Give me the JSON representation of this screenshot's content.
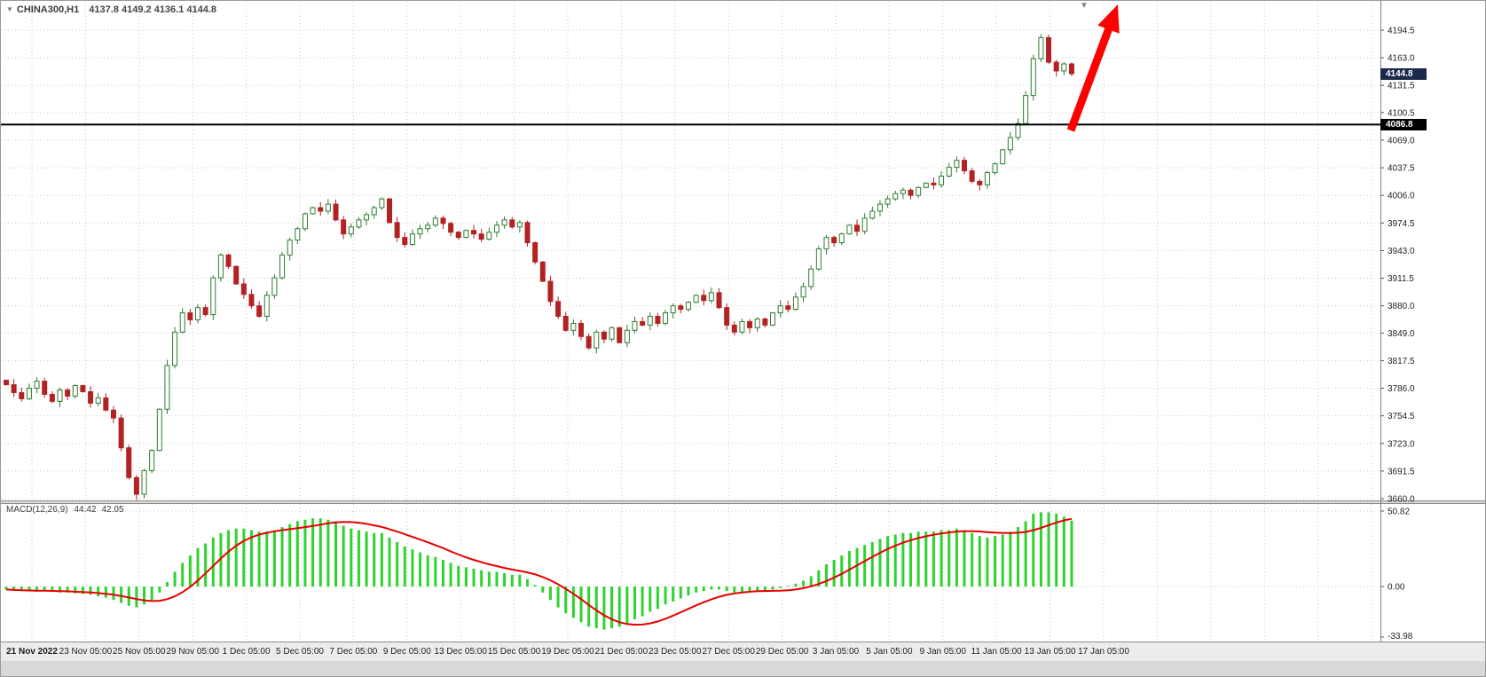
{
  "header": {
    "symbol": "CHINA300,H1",
    "ohlc_text": "4137.8 4149.2 4136.1 4144.8"
  },
  "macd": {
    "label": "MACD(12,26,9)",
    "value_main": "44.42",
    "value_signal": "42.05"
  },
  "price_axis": {
    "ticks": [
      4194.5,
      4163.0,
      4131.5,
      4100.5,
      4069.0,
      4037.5,
      4006.0,
      3974.5,
      3943.0,
      3911.5,
      3880.0,
      3849.0,
      3817.5,
      3786.0,
      3754.5,
      3723.0,
      3691.5,
      3660.0
    ],
    "current_price": 4144.8,
    "current_tag": "4144.8",
    "hline_price": 4086.8,
    "hline_tag": "4086.8"
  },
  "macd_axis": {
    "labels": [
      "50.82",
      "0.00",
      "-33.98"
    ],
    "values": [
      50.82,
      0.0,
      -33.98
    ]
  },
  "time_axis": {
    "labels": [
      "21 Nov 2022",
      "23 Nov 05:00",
      "25 Nov 05:00",
      "29 Nov 05:00",
      "1 Dec 05:00",
      "5 Dec 05:00",
      "7 Dec 05:00",
      "9 Dec 05:00",
      "13 Dec 05:00",
      "15 Dec 05:00",
      "19 Dec 05:00",
      "21 Dec 05:00",
      "23 Dec 05:00",
      "27 Dec 05:00",
      "29 Dec 05:00",
      "3 Jan 05:00",
      "5 Jan 05:00",
      "9 Jan 05:00",
      "11 Jan 05:00",
      "13 Jan 05:00",
      "17 Jan 05:00"
    ]
  },
  "annotations": {
    "hline_price": 4086.8,
    "hline_color": "#000000",
    "arrow_type": "up-trend-arrow",
    "arrow_color": "#ff0000"
  },
  "colors": {
    "bull_stroke": "#2e7d32",
    "bull_fill": "#ffffff",
    "bear": "#b22222",
    "macd_hist": "#2fd32f",
    "macd_signal": "#e60000",
    "grid": "#c9c9c9",
    "axis_line": "#808080",
    "tag_current_bg": "#1b2a4a",
    "tag_line_bg": "#000000",
    "bottom_strip": "#ececec"
  },
  "chart_data": [
    {
      "type": "candlestick",
      "title": "CHINA300,H1",
      "ylabel": "price",
      "ylim": [
        3660.0,
        4194.5
      ],
      "grid": true,
      "last_bar_ohlc": {
        "open": 4137.8,
        "high": 4149.2,
        "low": 4136.1,
        "close": 4144.8
      },
      "hline": 4086.8,
      "open_rule": "open equals previous close (values estimated from pixels)",
      "first_open": 3795,
      "closes": [
        3790,
        3781,
        3774,
        3786,
        3794,
        3779,
        3771,
        3784,
        3777,
        3789,
        3782,
        3769,
        3775,
        3761,
        3752,
        3718,
        3684,
        3665,
        3692,
        3715,
        3762,
        3812,
        3850,
        3872,
        3864,
        3878,
        3870,
        3912,
        3938,
        3925,
        3905,
        3893,
        3880,
        3868,
        3892,
        3912,
        3938,
        3955,
        3968,
        3985,
        3992,
        3988,
        3996,
        3978,
        3962,
        3970,
        3978,
        3984,
        3992,
        4002,
        3975,
        3958,
        3950,
        3962,
        3968,
        3972,
        3980,
        3974,
        3964,
        3958,
        3966,
        3962,
        3956,
        3964,
        3972,
        3978,
        3970,
        3975,
        3952,
        3930,
        3908,
        3885,
        3868,
        3852,
        3860,
        3845,
        3832,
        3850,
        3842,
        3855,
        3838,
        3852,
        3862,
        3858,
        3868,
        3860,
        3872,
        3880,
        3876,
        3884,
        3892,
        3886,
        3895,
        3878,
        3858,
        3850,
        3862,
        3855,
        3865,
        3858,
        3872,
        3880,
        3876,
        3890,
        3902,
        3922,
        3945,
        3958,
        3952,
        3962,
        3972,
        3965,
        3980,
        3988,
        3996,
        4002,
        4008,
        4012,
        4006,
        4015,
        4020,
        4018,
        4028,
        4038,
        4046,
        4034,
        4022,
        4018,
        4032,
        4042,
        4058,
        4072,
        4088,
        4120,
        4162,
        4186,
        4158,
        4148,
        4156,
        4144.8
      ]
    },
    {
      "type": "bar",
      "name": "MACD(12,26,9)",
      "ylim": [
        -33.98,
        50.82
      ],
      "last_macd": 44.42,
      "last_signal": 42.05,
      "signal_rule": "SMA(9) of values, drawn as red line",
      "values": [
        -2,
        -2.5,
        -3,
        -3,
        -3.5,
        -3,
        -3.5,
        -4,
        -4,
        -4.5,
        -5,
        -5.5,
        -6.5,
        -7.5,
        -9,
        -11,
        -13,
        -14,
        -12,
        -9,
        -4,
        3,
        10,
        16,
        21,
        26,
        29,
        33,
        36,
        38,
        39,
        39,
        38,
        37,
        37,
        38,
        40,
        42,
        44,
        45,
        46,
        46,
        45,
        43,
        41,
        39,
        38,
        37,
        36,
        36,
        33,
        30,
        27,
        25,
        23,
        21,
        20,
        18,
        16,
        14,
        13,
        12,
        11,
        10,
        10,
        9,
        8,
        8,
        5,
        1,
        -4,
        -9,
        -14,
        -18,
        -21,
        -24,
        -27,
        -28,
        -29,
        -28,
        -27,
        -25,
        -22,
        -20,
        -17,
        -15,
        -12,
        -10,
        -8,
        -6,
        -4,
        -3,
        -2,
        -2,
        -3,
        -4,
        -4,
        -3,
        -3,
        -3,
        -2,
        -1,
        0.5,
        2,
        4,
        7,
        11,
        15,
        18,
        21,
        24,
        26,
        28,
        30,
        32,
        34,
        35,
        36,
        36,
        37,
        37,
        37,
        38,
        38,
        39,
        38,
        36,
        34,
        33,
        34,
        35,
        37,
        40,
        44,
        49,
        50,
        50,
        49,
        47,
        44.42
      ]
    }
  ]
}
